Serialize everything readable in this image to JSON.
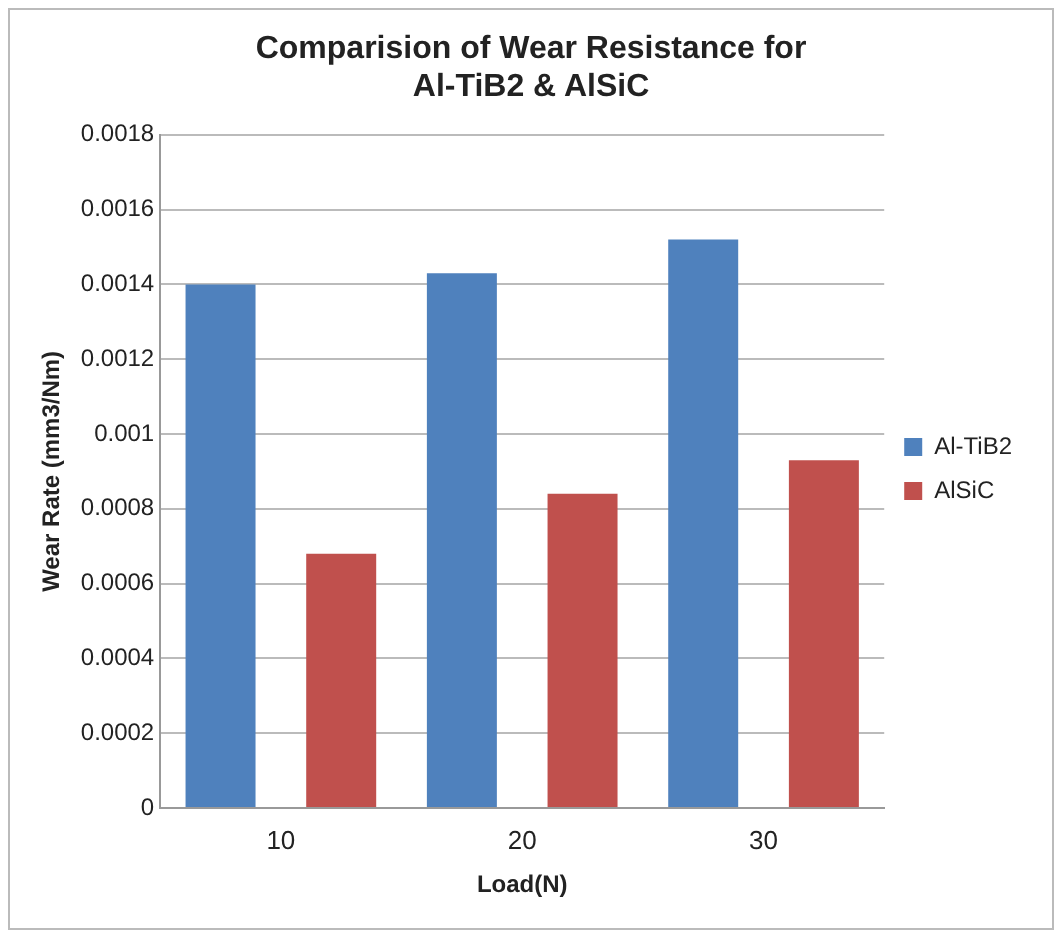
{
  "chart_data": {
    "type": "bar",
    "title": "Comparision of Wear Resistance for\nAl-TiB2 & AlSiC",
    "xlabel": "Load(N)",
    "ylabel": "Wear Rate (mm3/Nm)",
    "categories": [
      "10",
      "20",
      "30"
    ],
    "series": [
      {
        "name": "Al-TiB2",
        "color": "#4f81bd",
        "values": [
          0.0014,
          0.00143,
          0.00152
        ]
      },
      {
        "name": "AlSiC",
        "color": "#c0504d",
        "values": [
          0.00068,
          0.00084,
          0.00093
        ]
      }
    ],
    "ylim": [
      0,
      0.0018
    ],
    "yticks": [
      0,
      0.0002,
      0.0004,
      0.0006,
      0.0008,
      0.001,
      0.0012,
      0.0014,
      0.0016,
      0.0018
    ],
    "grid": "y",
    "legend": "right"
  }
}
